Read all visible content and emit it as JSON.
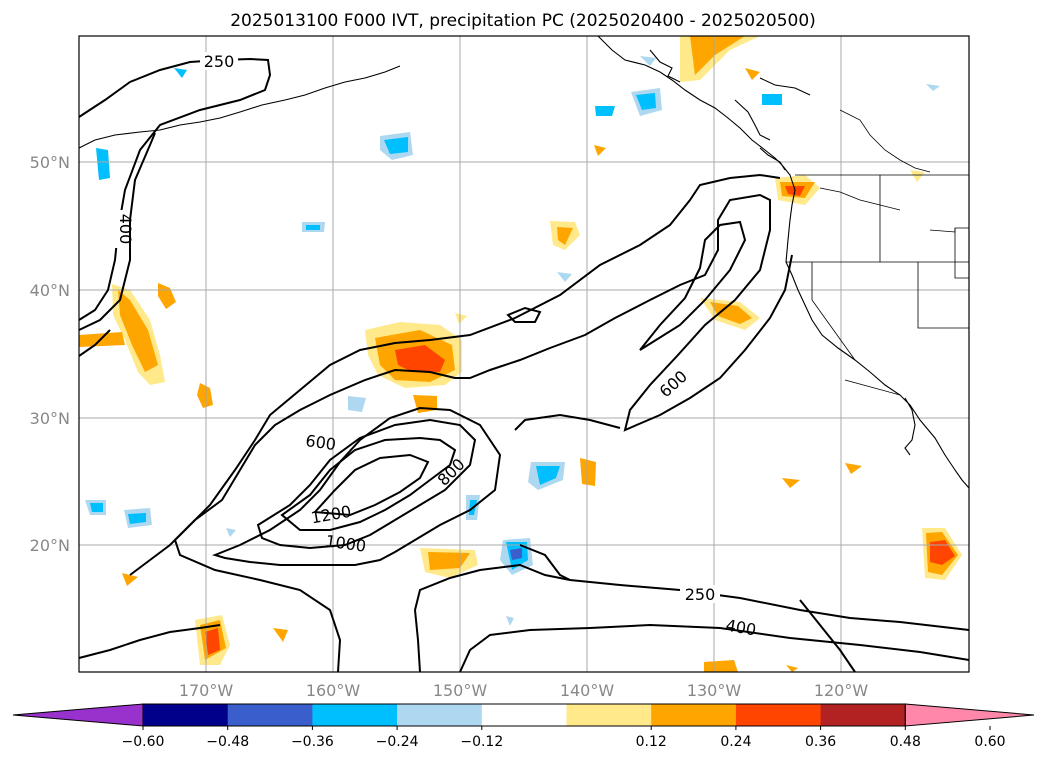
{
  "title": "2025013100 F000 IVT, precipitation PC (2025020400 - 2025020500)",
  "map": {
    "lat_labels": [
      "50°N",
      "40°N",
      "30°N",
      "20°N"
    ],
    "lon_labels": [
      "170°W",
      "160°W",
      "150°W",
      "140°W",
      "130°W",
      "120°W"
    ],
    "ivt_contour_labels": [
      "250",
      "400",
      "600",
      "600",
      "800",
      "1000",
      "1200",
      "250",
      "400"
    ]
  },
  "colorbar": {
    "labels": [
      "−0.60",
      "−0.48",
      "−0.36",
      "−0.24",
      "−0.12",
      "0.12",
      "0.24",
      "0.36",
      "0.48",
      "0.60"
    ],
    "colors": [
      "#9932cc",
      "#00008b",
      "#3a5fcd",
      "#00bfff",
      "#add8f0",
      "#ffffff",
      "#ffe98a",
      "#ffa500",
      "#ff4500",
      "#b22222",
      "#ff88aa"
    ]
  }
}
